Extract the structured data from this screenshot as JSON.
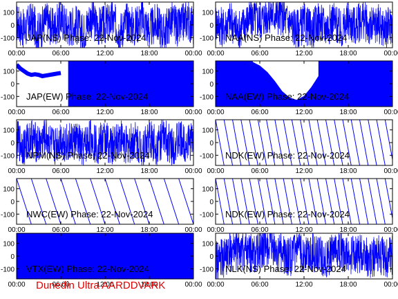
{
  "footer": "Dunedin Ultra AARDDVARK",
  "colors": {
    "trace": "#0000ff",
    "axes": "#000000",
    "footer": "#e00000"
  },
  "chart_data": [
    {
      "type": "line",
      "title": "JAP(NS) Phase: 22-Nov-2024",
      "style": "noise",
      "x_ticks": [
        "00:00",
        "06:00",
        "12:00",
        "18:00",
        "00:00"
      ],
      "y_ticks": [
        100,
        0,
        -100
      ],
      "ylim": [
        -180,
        180
      ],
      "xlim_hours": [
        0,
        24
      ],
      "x": [
        0,
        1,
        2,
        3,
        4,
        5,
        6,
        7,
        8,
        9,
        10,
        11,
        12,
        13,
        14,
        15,
        16,
        17,
        18,
        19,
        20,
        21,
        22,
        23,
        24
      ],
      "y": [
        20,
        -40,
        30,
        -60,
        40,
        -30,
        50,
        -20,
        10,
        -70,
        60,
        -10,
        0,
        40,
        -50,
        30,
        -20,
        60,
        -40,
        20,
        -60,
        40,
        -30,
        50,
        -10
      ]
    },
    {
      "type": "line",
      "title": "NAA(NS) Phase: 22-Nov-2024",
      "style": "noise",
      "x_ticks": [
        "00:00",
        "06:00",
        "12:00",
        "18:00",
        "00:00"
      ],
      "y_ticks": [
        100,
        0,
        -100
      ],
      "ylim": [
        -180,
        180
      ],
      "xlim_hours": [
        0,
        24
      ],
      "x": [
        0,
        1,
        2,
        3,
        4,
        5,
        6,
        7,
        8,
        9,
        10,
        11,
        12,
        13,
        14,
        15,
        16,
        17,
        18,
        19,
        20,
        21,
        22,
        23,
        24
      ],
      "y": [
        30,
        -20,
        40,
        -50,
        20,
        60,
        40,
        80,
        90,
        70,
        20,
        -30,
        10,
        -40,
        30,
        -20,
        40,
        -50,
        30,
        -10,
        50,
        -30,
        20,
        -40,
        10
      ]
    },
    {
      "type": "line",
      "title": "JAP(EW) Phase: 22-Nov-2024",
      "style": "filled",
      "x_ticks": [
        "00:00",
        "06:00",
        "12:00",
        "18:00",
        "00:00"
      ],
      "y_ticks": [
        100,
        0,
        -100
      ],
      "ylim": [
        -180,
        180
      ],
      "xlim_hours": [
        0,
        24
      ],
      "x": [
        0,
        0.5,
        1,
        1.5,
        2,
        2.5,
        3,
        3.5,
        4,
        4.5,
        5,
        5.5,
        6,
        7,
        8,
        12,
        16,
        20,
        22,
        23,
        24
      ],
      "y": [
        150,
        120,
        100,
        80,
        70,
        75,
        70,
        60,
        65,
        70,
        75,
        80,
        85,
        0,
        0,
        0,
        0,
        0,
        0,
        0,
        0
      ]
    },
    {
      "type": "line",
      "title": "NAA(EW) Phase: 22-Nov-2024",
      "style": "arc",
      "x_ticks": [
        "00:00",
        "06:00",
        "12:00",
        "18:00",
        "00:00"
      ],
      "y_ticks": [
        100,
        0,
        -100
      ],
      "ylim": [
        -180,
        180
      ],
      "xlim_hours": [
        0,
        24
      ],
      "x": [
        5,
        6,
        7,
        8,
        9,
        10,
        11,
        12,
        13,
        14
      ],
      "y": [
        170,
        140,
        90,
        20,
        -60,
        -110,
        -130,
        -100,
        -30,
        60
      ]
    },
    {
      "type": "line",
      "title": "NPM(NS) Phase: 22-Nov-2024",
      "style": "noise",
      "x_ticks": [
        "00:00",
        "06:00",
        "12:00",
        "18:00",
        "00:00"
      ],
      "y_ticks": [
        100,
        0,
        -100
      ],
      "ylim": [
        -180,
        180
      ],
      "xlim_hours": [
        0,
        24
      ],
      "x": [
        0,
        1,
        2,
        3,
        4,
        5,
        6,
        7,
        8,
        9,
        10,
        11,
        12,
        13,
        14,
        15,
        16,
        17,
        18,
        19,
        20,
        21,
        22,
        23,
        24
      ],
      "y": [
        20,
        -30,
        40,
        -20,
        50,
        -40,
        30,
        -10,
        20,
        -50,
        40,
        -20,
        30,
        -40,
        50,
        -30,
        20,
        -40,
        30,
        -20,
        40,
        -30,
        20,
        -10,
        30
      ]
    },
    {
      "type": "line",
      "title": "NDK(EW) Phase: 22-Nov-2024",
      "style": "sawtooth",
      "x_ticks": [
        "00:00",
        "06:00",
        "12:00",
        "18:00",
        "00:00"
      ],
      "y_ticks": [
        100,
        0,
        -100
      ],
      "ylim": [
        -180,
        180
      ],
      "xlim_hours": [
        0,
        24
      ],
      "period_hours": 1.15,
      "x": [
        0,
        24
      ],
      "y": [
        180,
        -180
      ]
    },
    {
      "type": "line",
      "title": "NWC(EW) Phase: 22-Nov-2024",
      "style": "sawtooth",
      "x_ticks": [
        "00:00",
        "06:00",
        "12:00",
        "18:00",
        "00:00"
      ],
      "y_ticks": [
        100,
        0,
        -100
      ],
      "ylim": [
        -180,
        180
      ],
      "xlim_hours": [
        0,
        24
      ],
      "period_hours": 2.0,
      "x": [
        0,
        24
      ],
      "y": [
        180,
        -180
      ]
    },
    {
      "type": "line",
      "title": "NDK(EW) Phase: 22-Nov-2024",
      "style": "sawtooth",
      "x_ticks": [
        "00:00",
        "06:00",
        "12:00",
        "18:00",
        "00:00"
      ],
      "y_ticks": [
        100,
        0,
        -100
      ],
      "ylim": [
        -180,
        180
      ],
      "xlim_hours": [
        0,
        24
      ],
      "period_hours": 1.15,
      "x": [
        0,
        24
      ],
      "y": [
        180,
        -180
      ]
    },
    {
      "type": "line",
      "title": "VTX(EW) Phase: 22-Nov-2024",
      "style": "filled",
      "x_ticks": [
        "00:00",
        "06:00",
        "12:00",
        "18:00",
        "00:00"
      ],
      "y_ticks": [
        100,
        0,
        -100
      ],
      "ylim": [
        -180,
        180
      ],
      "xlim_hours": [
        0,
        24
      ],
      "x": [
        0,
        24
      ],
      "y": [
        0,
        0
      ]
    },
    {
      "type": "line",
      "title": "NLK(NS) Phase: 22-Nov-2024",
      "style": "noise",
      "x_ticks": [
        "00:00",
        "06:00",
        "12:00",
        "18:00",
        "00:00"
      ],
      "y_ticks": [
        100,
        0,
        -100
      ],
      "ylim": [
        -180,
        180
      ],
      "xlim_hours": [
        0,
        24
      ],
      "x": [
        0,
        1,
        2,
        3,
        4,
        5,
        6,
        7,
        8,
        9,
        10,
        11,
        12,
        13,
        14,
        15,
        16,
        17,
        18,
        19,
        20,
        21,
        22,
        23,
        24
      ],
      "y": [
        -40,
        -20,
        30,
        50,
        40,
        20,
        50,
        70,
        40,
        20,
        -10,
        30,
        20,
        40,
        10,
        -20,
        20,
        40,
        -10,
        30,
        10,
        -30,
        20,
        -20,
        10
      ]
    }
  ]
}
